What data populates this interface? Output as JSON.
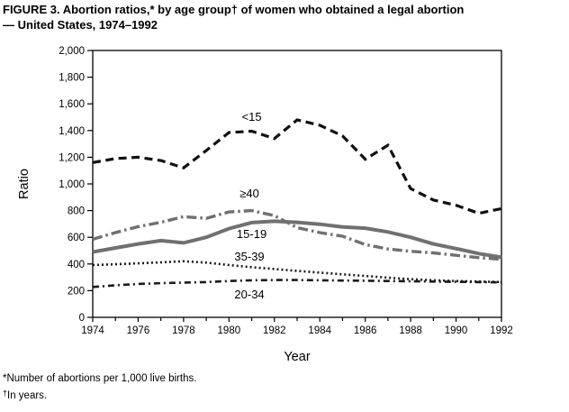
{
  "header": {
    "title_line1": "FIGURE 3. Abortion ratios,* by age group† of women who obtained a legal abortion",
    "title_line2": "— United States, 1974–1992"
  },
  "footnotes": [
    {
      "marker": "*",
      "text": "Number of abortions per 1,000 live births."
    },
    {
      "marker": "†",
      "text": "In years."
    }
  ],
  "chart_data": {
    "type": "line",
    "title": "FIGURE 3. Abortion ratios, by age group, of women who obtained a legal abortion — United States, 1974–1992",
    "xlabel": "Year",
    "ylabel": "Ratio",
    "xlim": [
      1974,
      1992
    ],
    "ylim": [
      0,
      2000
    ],
    "grid": false,
    "legend_position": "inline-labels",
    "x": [
      1974,
      1975,
      1976,
      1977,
      1978,
      1979,
      1980,
      1981,
      1982,
      1983,
      1984,
      1985,
      1986,
      1987,
      1988,
      1989,
      1990,
      1991,
      1992
    ],
    "xtick_labels": [
      "1974",
      "1976",
      "1978",
      "1980",
      "1982",
      "1984",
      "1986",
      "1988",
      "1990",
      "1992"
    ],
    "ytick_values": [
      0,
      200,
      400,
      600,
      800,
      1000,
      1200,
      1400,
      1600,
      1800,
      2000
    ],
    "ytick_labels": [
      "0",
      "200",
      "400",
      "600",
      "800",
      "1,000",
      "1,200",
      "1,400",
      "1,600",
      "1,800",
      "2,000"
    ],
    "series": [
      {
        "name": "<15",
        "style": "bold-dash",
        "color": "#111111",
        "label_at": {
          "year": 1981.0,
          "ratio": 1500
        },
        "values": [
          1160,
          1190,
          1200,
          1175,
          1120,
          1250,
          1385,
          1395,
          1340,
          1480,
          1440,
          1360,
          1185,
          1290,
          965,
          880,
          840,
          780,
          815
        ]
      },
      {
        "name": "≥40",
        "style": "gray-dash-dot",
        "color": "#707070",
        "label_at": {
          "year": 1980.9,
          "ratio": 925
        },
        "values": [
          585,
          635,
          680,
          712,
          755,
          742,
          790,
          800,
          762,
          672,
          635,
          608,
          545,
          512,
          495,
          483,
          465,
          447,
          435
        ]
      },
      {
        "name": "15-19",
        "style": "gray-solid",
        "color": "#707070",
        "label_at": {
          "year": 1981.0,
          "ratio": 620
        },
        "values": [
          490,
          520,
          550,
          575,
          558,
          600,
          665,
          710,
          720,
          712,
          698,
          678,
          668,
          640,
          600,
          550,
          515,
          478,
          450
        ]
      },
      {
        "name": "35-39",
        "style": "dotted",
        "color": "#1a1a1a",
        "label_at": {
          "year": 1980.9,
          "ratio": 452
        },
        "values": [
          392,
          398,
          405,
          412,
          420,
          410,
          392,
          376,
          362,
          348,
          335,
          322,
          310,
          297,
          286,
          278,
          272,
          268,
          265
        ]
      },
      {
        "name": "20-34",
        "style": "dash-dot",
        "color": "#1a1a1a",
        "label_at": {
          "year": 1980.9,
          "ratio": 168
        },
        "values": [
          228,
          240,
          250,
          256,
          260,
          264,
          272,
          278,
          280,
          280,
          278,
          276,
          274,
          272,
          270,
          268,
          266,
          264,
          262
        ]
      }
    ]
  }
}
